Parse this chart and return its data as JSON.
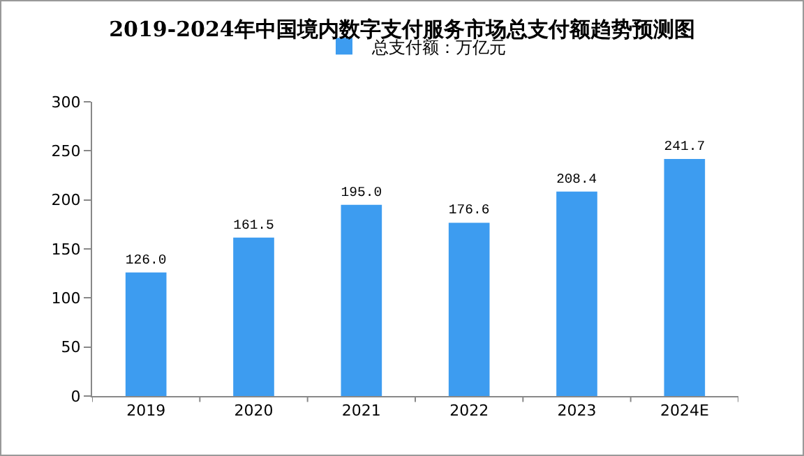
{
  "chart_data": {
    "type": "bar",
    "title": "2019-2024年中国境内数字支付服务市场总支付额趋势预测图",
    "categories": [
      "2019",
      "2020",
      "2021",
      "2022",
      "2023",
      "2024E"
    ],
    "series": [
      {
        "name": "总支付额：万亿元",
        "color": "#3d9cf0",
        "values": [
          126.0,
          161.5,
          195.0,
          176.6,
          208.4,
          241.7
        ]
      }
    ],
    "value_labels": [
      "126.0",
      "161.5",
      "195.0",
      "176.6",
      "208.4",
      "241.7"
    ],
    "ylim": [
      0,
      300
    ],
    "yticks": [
      0,
      50,
      100,
      150,
      200,
      250,
      300
    ],
    "grid": false,
    "legend": "top"
  }
}
